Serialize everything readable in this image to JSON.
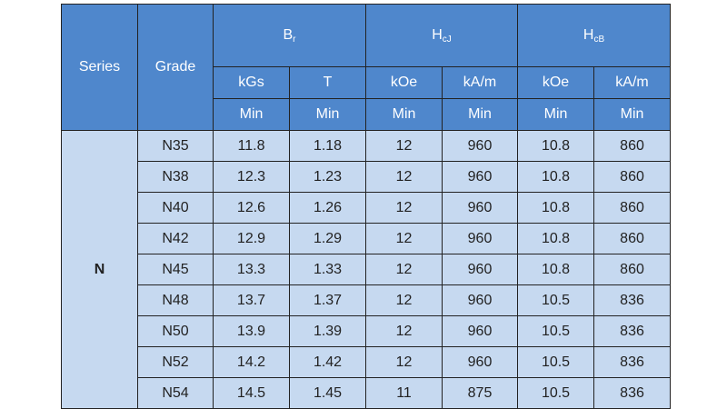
{
  "table": {
    "header": {
      "series": "Series",
      "grade": "Grade",
      "groups": [
        {
          "main": "B",
          "sub": "r"
        },
        {
          "main": "H",
          "sub": "cJ"
        },
        {
          "main": "H",
          "sub": "cB"
        }
      ],
      "units": [
        "kGs",
        "T",
        "kOe",
        "kA/m",
        "kOe",
        "kA/m"
      ],
      "limits": [
        "Min",
        "Min",
        "Min",
        "Min",
        "Min",
        "Min"
      ]
    },
    "series_name": "N",
    "rows": [
      [
        "N35",
        "11.8",
        "1.18",
        "12",
        "960",
        "10.8",
        "860"
      ],
      [
        "N38",
        "12.3",
        "1.23",
        "12",
        "960",
        "10.8",
        "860"
      ],
      [
        "N40",
        "12.6",
        "1.26",
        "12",
        "960",
        "10.8",
        "860"
      ],
      [
        "N42",
        "12.9",
        "1.29",
        "12",
        "960",
        "10.8",
        "860"
      ],
      [
        "N45",
        "13.3",
        "1.33",
        "12",
        "960",
        "10.8",
        "860"
      ],
      [
        "N48",
        "13.7",
        "1.37",
        "12",
        "960",
        "10.5",
        "836"
      ],
      [
        "N50",
        "13.9",
        "1.39",
        "12",
        "960",
        "10.5",
        "836"
      ],
      [
        "N52",
        "14.2",
        "1.42",
        "12",
        "960",
        "10.5",
        "836"
      ],
      [
        "N54",
        "14.5",
        "1.45",
        "11",
        "875",
        "10.5",
        "836"
      ]
    ]
  }
}
